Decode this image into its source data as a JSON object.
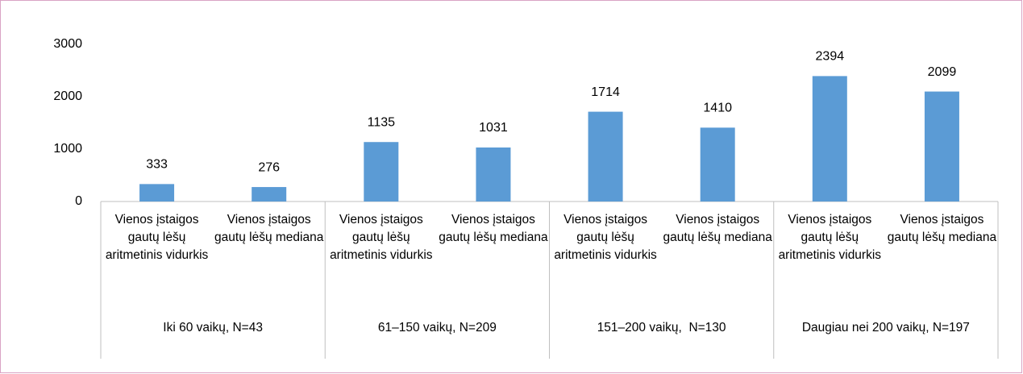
{
  "chart_data": {
    "type": "bar",
    "categories": [
      "Vienos įstaigos gautų lėšų aritmetinis vidurkis",
      "Vienos įstaigos gautų lėšų mediana",
      "Vienos įstaigos gautų lėšų aritmetinis vidurkis",
      "Vienos įstaigos gautų lėšų mediana",
      "Vienos įstaigos gautų lėšų aritmetinis vidurkis",
      "Vienos įstaigos gautų lėšų mediana",
      "Vienos įstaigos gautų lėšų aritmetinis vidurkis",
      "Vienos įstaigos gautų lėšų mediana"
    ],
    "groups": [
      "Iki 60 vaikų, N=43",
      "61–150 vaikų, N=209",
      "151–200 vaikų,  N=130",
      "Daugiau nei 200 vaikų, N=197"
    ],
    "values": [
      333,
      276,
      1135,
      1031,
      1714,
      1410,
      2394,
      2099
    ],
    "color": "#5b9bd5",
    "ylim": [
      0,
      3000
    ],
    "yticks": [
      0,
      1000,
      2000,
      3000
    ],
    "grid": false
  }
}
